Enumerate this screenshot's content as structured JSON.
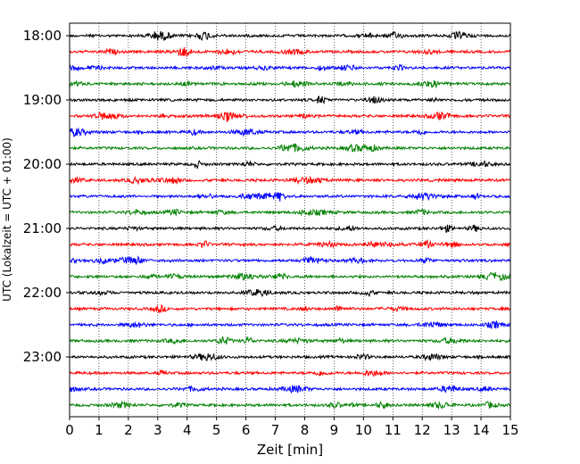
{
  "chart_data": {
    "type": "line",
    "title": "",
    "xlabel": "Zeit  [min]",
    "ylabel": "UTC (Lokalzeit = UTC + 01:00)",
    "xlim": [
      0,
      15
    ],
    "x_ticks": [
      "0",
      "1",
      "2",
      "3",
      "4",
      "5",
      "6",
      "7",
      "8",
      "9",
      "10",
      "11",
      "12",
      "13",
      "14",
      "15"
    ],
    "y_tick_labels": [
      "18:00",
      "19:00",
      "20:00",
      "21:00",
      "22:00",
      "23:00"
    ],
    "grid": "vertical dotted at each minute",
    "trace_interval_minutes": 15,
    "traces": [
      {
        "start": "18:00",
        "color": "#000000"
      },
      {
        "start": "18:15",
        "color": "#ff0000"
      },
      {
        "start": "18:30",
        "color": "#0000ff"
      },
      {
        "start": "18:45",
        "color": "#008000"
      },
      {
        "start": "19:00",
        "color": "#000000"
      },
      {
        "start": "19:15",
        "color": "#ff0000"
      },
      {
        "start": "19:30",
        "color": "#0000ff"
      },
      {
        "start": "19:45",
        "color": "#008000"
      },
      {
        "start": "20:00",
        "color": "#000000"
      },
      {
        "start": "20:15",
        "color": "#ff0000"
      },
      {
        "start": "20:30",
        "color": "#0000ff"
      },
      {
        "start": "20:45",
        "color": "#008000"
      },
      {
        "start": "21:00",
        "color": "#000000"
      },
      {
        "start": "21:15",
        "color": "#ff0000"
      },
      {
        "start": "21:30",
        "color": "#0000ff"
      },
      {
        "start": "21:45",
        "color": "#008000"
      },
      {
        "start": "22:00",
        "color": "#000000"
      },
      {
        "start": "22:15",
        "color": "#ff0000"
      },
      {
        "start": "22:30",
        "color": "#0000ff"
      },
      {
        "start": "22:45",
        "color": "#008000"
      },
      {
        "start": "23:00",
        "color": "#000000"
      },
      {
        "start": "23:15",
        "color": "#ff0000"
      },
      {
        "start": "23:30",
        "color": "#0000ff"
      },
      {
        "start": "23:45",
        "color": "#008000"
      }
    ]
  }
}
